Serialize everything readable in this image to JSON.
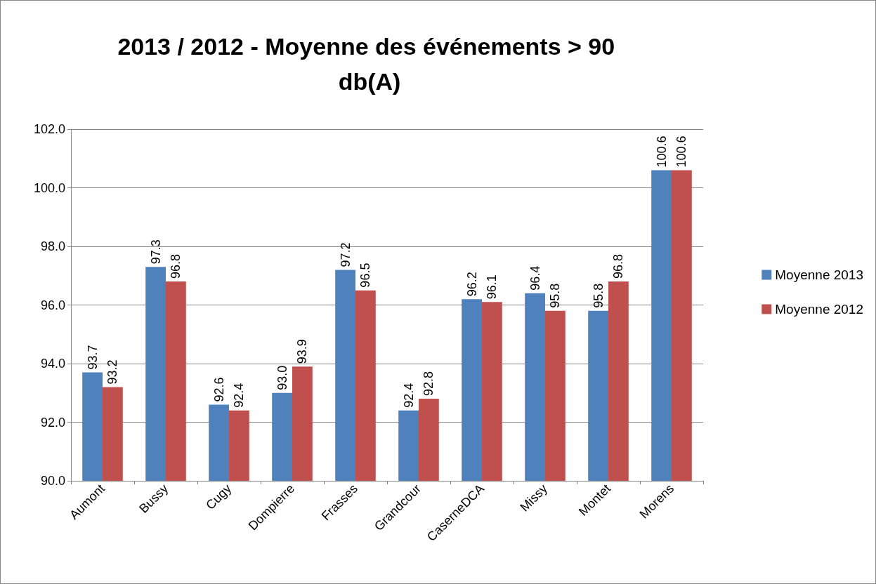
{
  "chart_data": {
    "type": "bar",
    "title": "2013 / 2012 - Moyenne des événements > 90 db(A)",
    "categories": [
      "Aumont",
      "Bussy",
      "Cugy",
      "Dompierre",
      "Frasses",
      "Grandcour",
      "CaserneDCA",
      "Missy",
      "Montet",
      "Morens"
    ],
    "series": [
      {
        "name": "Moyenne 2013",
        "color": "#4f81bd",
        "values": [
          93.7,
          97.3,
          92.6,
          93.0,
          97.2,
          92.4,
          96.2,
          96.4,
          95.8,
          100.6
        ],
        "value_labels": [
          "93.7",
          "97.3",
          "92.6",
          "93.0",
          "97.2",
          "92.4",
          "96.2",
          "96.4",
          "95.8",
          "100.6"
        ]
      },
      {
        "name": "Moyenne 2012",
        "color": "#c0504d",
        "values": [
          93.2,
          96.8,
          92.4,
          93.9,
          96.5,
          92.8,
          96.1,
          95.8,
          96.8,
          100.6
        ],
        "value_labels": [
          "93.2",
          "96.8",
          "92.4",
          "93.9",
          "96.5",
          "92.8",
          "96.1",
          "95.8",
          "96.8",
          "100.6"
        ]
      }
    ],
    "ylim": [
      90,
      102
    ],
    "yticks": [
      {
        "value": 90,
        "label": "90.0"
      },
      {
        "value": 92,
        "label": "92.0"
      },
      {
        "value": 94,
        "label": "94.0"
      },
      {
        "value": 96,
        "label": "96.0"
      },
      {
        "value": 98,
        "label": "98.0"
      },
      {
        "value": 100,
        "label": "100.0"
      },
      {
        "value": 102,
        "label": "102.0"
      }
    ],
    "grid": "y",
    "legend": "right"
  }
}
